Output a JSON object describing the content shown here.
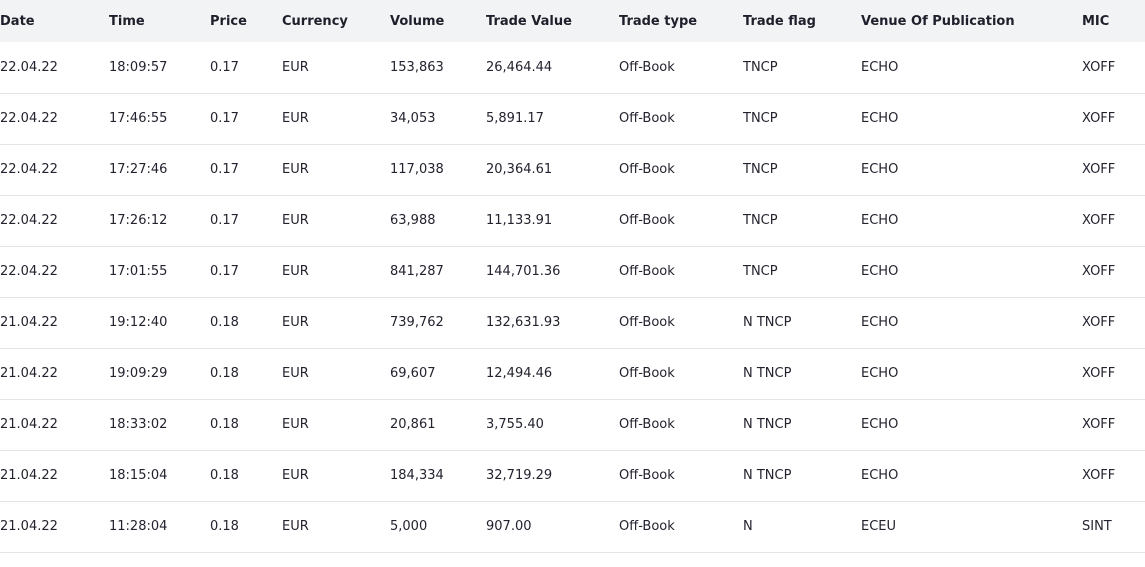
{
  "table": {
    "headers": [
      "Date",
      "Time",
      "Price",
      "Currency",
      "Volume",
      "Trade Value",
      "Trade type",
      "Trade flag",
      "Venue Of Publication",
      "MIC"
    ],
    "rows": [
      [
        "22.04.22",
        "18:09:57",
        "0.17",
        "EUR",
        "153,863",
        "26,464.44",
        "Off-Book",
        "TNCP",
        "ECHO",
        "XOFF"
      ],
      [
        "22.04.22",
        "17:46:55",
        "0.17",
        "EUR",
        "34,053",
        "5,891.17",
        "Off-Book",
        "TNCP",
        "ECHO",
        "XOFF"
      ],
      [
        "22.04.22",
        "17:27:46",
        "0.17",
        "EUR",
        "117,038",
        "20,364.61",
        "Off-Book",
        "TNCP",
        "ECHO",
        "XOFF"
      ],
      [
        "22.04.22",
        "17:26:12",
        "0.17",
        "EUR",
        "63,988",
        "11,133.91",
        "Off-Book",
        "TNCP",
        "ECHO",
        "XOFF"
      ],
      [
        "22.04.22",
        "17:01:55",
        "0.17",
        "EUR",
        "841,287",
        "144,701.36",
        "Off-Book",
        "TNCP",
        "ECHO",
        "XOFF"
      ],
      [
        "21.04.22",
        "19:12:40",
        "0.18",
        "EUR",
        "739,762",
        "132,631.93",
        "Off-Book",
        "N TNCP",
        "ECHO",
        "XOFF"
      ],
      [
        "21.04.22",
        "19:09:29",
        "0.18",
        "EUR",
        "69,607",
        "12,494.46",
        "Off-Book",
        "N TNCP",
        "ECHO",
        "XOFF"
      ],
      [
        "21.04.22",
        "18:33:02",
        "0.18",
        "EUR",
        "20,861",
        "3,755.40",
        "Off-Book",
        "N TNCP",
        "ECHO",
        "XOFF"
      ],
      [
        "21.04.22",
        "18:15:04",
        "0.18",
        "EUR",
        "184,334",
        "32,719.29",
        "Off-Book",
        "N TNCP",
        "ECHO",
        "XOFF"
      ],
      [
        "21.04.22",
        "11:28:04",
        "0.18",
        "EUR",
        "5,000",
        "907.00",
        "Off-Book",
        "N",
        "ECEU",
        "SINT"
      ]
    ]
  }
}
